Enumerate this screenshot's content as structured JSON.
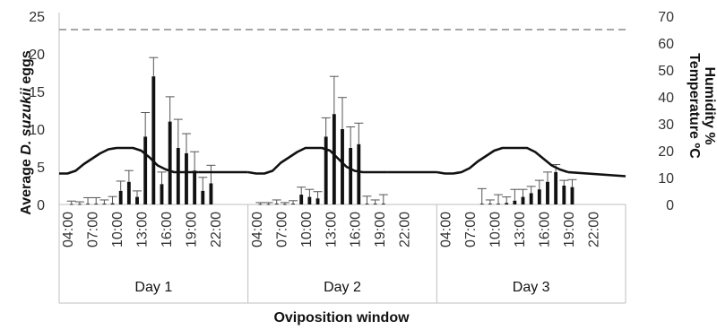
{
  "chart_data": {
    "type": "bar",
    "title": "",
    "xlabel": "Oviposition window",
    "ylabel_left": [
      "Average ",
      "D. suzukii",
      " eggs"
    ],
    "ylabel_right": [
      "Temperature ºC",
      "Humidity %"
    ],
    "ylim_left": [
      0,
      25
    ],
    "ylim_right": [
      0,
      70
    ],
    "yticks_left": [
      0,
      5,
      10,
      15,
      20,
      25
    ],
    "yticks_right": [
      0,
      10,
      20,
      30,
      40,
      50,
      60,
      70
    ],
    "gridlines": false,
    "x_tick_labels": [
      "04:00",
      "07:00",
      "10:00",
      "13:00",
      "16:00",
      "19:00",
      "22:00"
    ],
    "x_tick_hours": [
      4,
      7,
      10,
      13,
      16,
      19,
      22
    ],
    "hours_start": 3,
    "hours_end": 26,
    "days": [
      {
        "label": "Day 1",
        "bars": [
          {
            "h": 4.5,
            "v": 0.05,
            "e": 0.4
          },
          {
            "h": 5.5,
            "v": 0.05,
            "e": 0.3
          },
          {
            "h": 6.5,
            "v": 0.1,
            "e": 0.8
          },
          {
            "h": 7.5,
            "v": 0.1,
            "e": 0.8
          },
          {
            "h": 8.5,
            "v": 0.1,
            "e": 0.5
          },
          {
            "h": 9.5,
            "v": 0.15,
            "e": 0.9
          },
          {
            "h": 10.5,
            "v": 1.8,
            "e": 1.3
          },
          {
            "h": 11.5,
            "v": 3.0,
            "e": 1.5
          },
          {
            "h": 12.5,
            "v": 1.0,
            "e": 0.8
          },
          {
            "h": 13.5,
            "v": 9.0,
            "e": 3.2
          },
          {
            "h": 14.5,
            "v": 17.0,
            "e": 2.5
          },
          {
            "h": 15.5,
            "v": 2.7,
            "e": 1.6
          },
          {
            "h": 16.5,
            "v": 11.0,
            "e": 3.3
          },
          {
            "h": 17.5,
            "v": 7.5,
            "e": 3.8
          },
          {
            "h": 18.5,
            "v": 6.8,
            "e": 2.6
          },
          {
            "h": 19.5,
            "v": 4.5,
            "e": 2.5
          },
          {
            "h": 20.5,
            "v": 1.8,
            "e": 1.8
          },
          {
            "h": 21.5,
            "v": 2.8,
            "e": 2.4
          }
        ],
        "temperature": [
          {
            "h": 3.0,
            "t": 11.5
          },
          {
            "h": 4.0,
            "t": 11.5
          },
          {
            "h": 5.0,
            "t": 12.5
          },
          {
            "h": 6.0,
            "t": 15.0
          },
          {
            "h": 7.0,
            "t": 17.0
          },
          {
            "h": 8.0,
            "t": 19.0
          },
          {
            "h": 9.0,
            "t": 20.5
          },
          {
            "h": 10.0,
            "t": 21.0
          },
          {
            "h": 11.0,
            "t": 21.0
          },
          {
            "h": 12.0,
            "t": 21.0
          },
          {
            "h": 13.0,
            "t": 20.0
          },
          {
            "h": 14.0,
            "t": 17.5
          },
          {
            "h": 15.0,
            "t": 14.5
          },
          {
            "h": 16.0,
            "t": 13.0
          },
          {
            "h": 17.0,
            "t": 12.0
          },
          {
            "h": 18.0,
            "t": 12.0
          },
          {
            "h": 19.0,
            "t": 12.0
          },
          {
            "h": 20.0,
            "t": 12.0
          }
        ]
      },
      {
        "label": "Day 2",
        "bars": [
          {
            "h": 4.5,
            "v": 0.05,
            "e": 0.2
          },
          {
            "h": 5.5,
            "v": 0.05,
            "e": 0.2
          },
          {
            "h": 6.5,
            "v": 0.1,
            "e": 0.5
          },
          {
            "h": 7.5,
            "v": 0.05,
            "e": 0.2
          },
          {
            "h": 8.5,
            "v": 0.1,
            "e": 0.4
          },
          {
            "h": 9.5,
            "v": 1.3,
            "e": 1.0
          },
          {
            "h": 10.5,
            "v": 1.0,
            "e": 1.0
          },
          {
            "h": 11.5,
            "v": 0.8,
            "e": 0.9
          },
          {
            "h": 12.5,
            "v": 9.0,
            "e": 2.5
          },
          {
            "h": 13.5,
            "v": 12.0,
            "e": 5.0
          },
          {
            "h": 14.5,
            "v": 10.0,
            "e": 4.2
          },
          {
            "h": 15.5,
            "v": 7.5,
            "e": 2.8
          },
          {
            "h": 16.5,
            "v": 8.0,
            "e": 2.8
          },
          {
            "h": 17.5,
            "v": 0.1,
            "e": 1.0
          },
          {
            "h": 18.5,
            "v": 0.1,
            "e": 0.5
          },
          {
            "h": 19.5,
            "v": 0.1,
            "e": 1.2
          }
        ],
        "temperature": [
          {
            "h": 3.0,
            "t": 12.0
          },
          {
            "h": 4.0,
            "t": 11.5
          },
          {
            "h": 5.0,
            "t": 11.5
          },
          {
            "h": 6.0,
            "t": 12.5
          },
          {
            "h": 7.0,
            "t": 15.5
          },
          {
            "h": 8.0,
            "t": 17.5
          },
          {
            "h": 9.0,
            "t": 19.5
          },
          {
            "h": 10.0,
            "t": 21.0
          },
          {
            "h": 11.0,
            "t": 21.0
          },
          {
            "h": 12.0,
            "t": 21.0
          },
          {
            "h": 13.0,
            "t": 20.0
          },
          {
            "h": 14.0,
            "t": 17.0
          },
          {
            "h": 15.0,
            "t": 14.0
          },
          {
            "h": 16.0,
            "t": 12.5
          },
          {
            "h": 17.0,
            "t": 12.0
          },
          {
            "h": 18.0,
            "t": 12.0
          },
          {
            "h": 19.0,
            "t": 12.0
          },
          {
            "h": 20.0,
            "t": 12.0
          }
        ]
      },
      {
        "label": "Day 3",
        "bars": [
          {
            "h": 8.5,
            "v": 0.1,
            "e": 2.0
          },
          {
            "h": 9.5,
            "v": 0.1,
            "e": 0.5
          },
          {
            "h": 10.5,
            "v": 0.1,
            "e": 1.2
          },
          {
            "h": 11.5,
            "v": 0.2,
            "e": 0.8
          },
          {
            "h": 12.5,
            "v": 0.5,
            "e": 1.5
          },
          {
            "h": 13.5,
            "v": 1.0,
            "e": 1.0
          },
          {
            "h": 14.5,
            "v": 1.5,
            "e": 0.9
          },
          {
            "h": 15.5,
            "v": 2.0,
            "e": 1.2
          },
          {
            "h": 16.5,
            "v": 3.0,
            "e": 1.3
          },
          {
            "h": 17.5,
            "v": 4.3,
            "e": 1.0
          },
          {
            "h": 18.5,
            "v": 2.5,
            "e": 0.7
          },
          {
            "h": 19.5,
            "v": 2.3,
            "e": 1.0
          }
        ],
        "temperature": [
          {
            "h": 3.0,
            "t": 12.0
          },
          {
            "h": 4.0,
            "t": 11.5
          },
          {
            "h": 5.0,
            "t": 11.5
          },
          {
            "h": 6.0,
            "t": 12.0
          },
          {
            "h": 7.0,
            "t": 13.5
          },
          {
            "h": 8.0,
            "t": 16.0
          },
          {
            "h": 9.0,
            "t": 18.0
          },
          {
            "h": 10.0,
            "t": 20.0
          },
          {
            "h": 11.0,
            "t": 21.0
          },
          {
            "h": 12.0,
            "t": 21.0
          },
          {
            "h": 13.0,
            "t": 21.0
          },
          {
            "h": 14.0,
            "t": 21.0
          },
          {
            "h": 15.0,
            "t": 19.5
          },
          {
            "h": 16.0,
            "t": 17.0
          },
          {
            "h": 17.0,
            "t": 14.5
          },
          {
            "h": 18.0,
            "t": 13.0
          },
          {
            "h": 19.0,
            "t": 12.0
          }
        ]
      }
    ],
    "humidity_value": 65,
    "colors": {
      "bars": "#111111",
      "errorbars": "#555555",
      "temperature": "#111111",
      "humidity": "#a6a6a6",
      "axes": "#bfbfbf"
    }
  }
}
